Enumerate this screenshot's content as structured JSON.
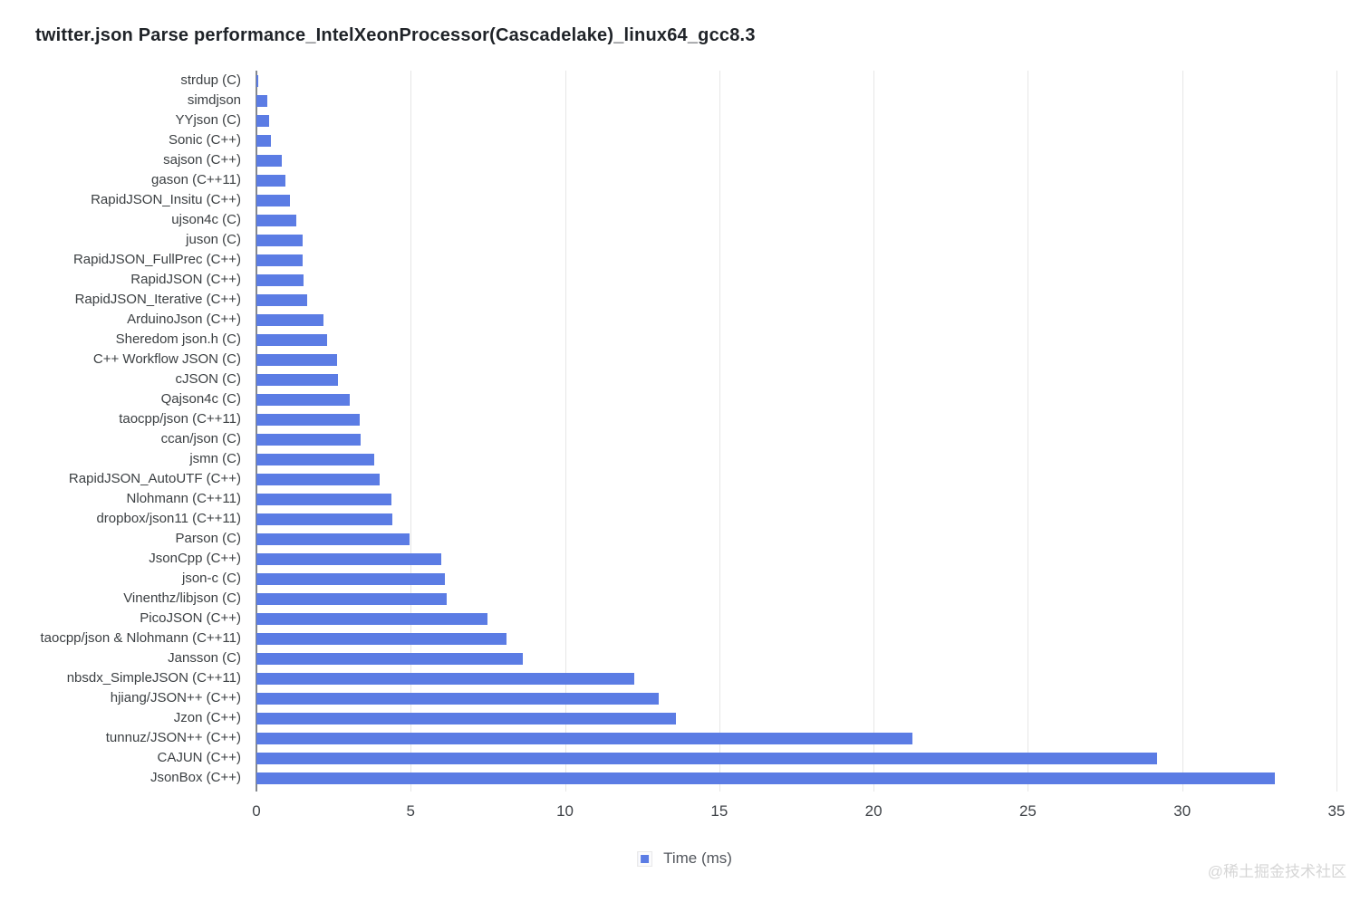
{
  "title": "twitter.json Parse performance_IntelXeonProcessor(Cascadelake)_linux64_gcc8.3",
  "legend": {
    "label": "Time (ms)"
  },
  "watermark": "@稀土掘金技术社区",
  "colors": {
    "bar": "#5b7ce4",
    "grid": "#e6e6e6",
    "axis": "#84888e",
    "title": "#1f2328",
    "category_label": "#3c4043",
    "tick_label": "#3f4348",
    "watermark": "#d6d6d6"
  },
  "chart_data": {
    "type": "bar",
    "orientation": "horizontal",
    "title": "twitter.json Parse performance_IntelXeonProcessor(Cascadelake)_linux64_gcc8.3",
    "xlabel": "",
    "ylabel": "",
    "xlim": [
      0,
      35
    ],
    "xticks": [
      0,
      5,
      10,
      15,
      20,
      25,
      30,
      35
    ],
    "grid": true,
    "legend_position": "bottom-center",
    "legend": [
      "Time (ms)"
    ],
    "series_name": "Time (ms)",
    "categories": [
      "strdup (C)",
      "simdjson",
      "YYjson (C)",
      "Sonic (C++)",
      "sajson (C++)",
      "gason (C++11)",
      "RapidJSON_Insitu (C++)",
      "ujson4c (C)",
      "juson (C)",
      "RapidJSON_FullPrec (C++)",
      "RapidJSON (C++)",
      "RapidJSON_Iterative (C++)",
      "ArduinoJson (C++)",
      "Sheredom json.h (C)",
      "C++ Workflow JSON (C)",
      "cJSON (C)",
      "Qajson4c (C)",
      "taocpp/json (C++11)",
      "ccan/json (C)",
      "jsmn (C)",
      "RapidJSON_AutoUTF (C++)",
      "Nlohmann (C++11)",
      "dropbox/json11 (C++11)",
      "Parson (C)",
      "JsonCpp (C++)",
      "json-c (C)",
      "Vinenthz/libjson (C)",
      "PicoJSON (C++)",
      "taocpp/json & Nlohmann (C++11)",
      "Jansson (C)",
      "nbsdx_SimpleJSON (C++11)",
      "hjiang/JSON++ (C++)",
      "Jzon (C++)",
      "tunnuz/JSON++ (C++)",
      "CAJUN (C++)",
      "JsonBox (C++)"
    ],
    "values": [
      0.07,
      0.35,
      0.41,
      0.47,
      0.81,
      0.94,
      1.1,
      1.28,
      1.5,
      1.5,
      1.53,
      1.65,
      2.16,
      2.3,
      2.6,
      2.64,
      3.02,
      3.35,
      3.38,
      3.81,
      4.0,
      4.38,
      4.41,
      4.96,
      6.0,
      6.1,
      6.16,
      7.48,
      8.1,
      8.64,
      12.25,
      13.05,
      13.6,
      21.27,
      29.2,
      33.0
    ]
  }
}
